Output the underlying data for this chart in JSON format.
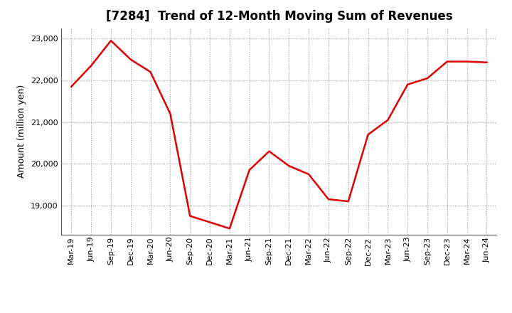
{
  "title": "[7284]  Trend of 12-Month Moving Sum of Revenues",
  "ylabel": "Amount (million yen)",
  "line_color": "#dd0000",
  "background_color": "#ffffff",
  "grid_color": "#999999",
  "x_labels": [
    "Mar-19",
    "Jun-19",
    "Sep-19",
    "Dec-19",
    "Mar-20",
    "Jun-20",
    "Sep-20",
    "Dec-20",
    "Mar-21",
    "Jun-21",
    "Sep-21",
    "Dec-21",
    "Mar-22",
    "Jun-22",
    "Sep-22",
    "Dec-22",
    "Mar-23",
    "Jun-23",
    "Sep-23",
    "Dec-23",
    "Mar-24",
    "Jun-24"
  ],
  "values": [
    21850,
    22350,
    22950,
    22500,
    22200,
    21200,
    18750,
    18600,
    18450,
    19850,
    20300,
    19950,
    19750,
    19150,
    19100,
    20700,
    21050,
    21900,
    22050,
    22450,
    22450,
    22430
  ],
  "ylim": [
    18300,
    23250
  ],
  "yticks": [
    19000,
    20000,
    21000,
    22000,
    23000
  ],
  "title_fontsize": 12,
  "tick_fontsize": 8,
  "ylabel_fontsize": 9,
  "line_width": 1.8
}
